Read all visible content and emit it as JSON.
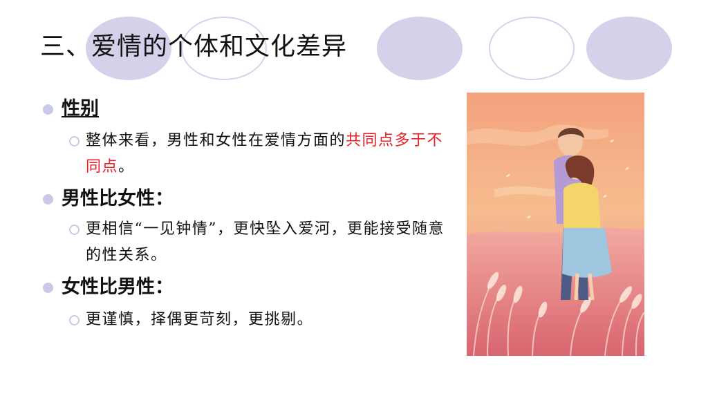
{
  "slide": {
    "title": "三、爱情的个体和文化差异",
    "colors": {
      "bullet": "#c9c9ea",
      "oval": "#d4d2ea",
      "highlight": "#e8202a"
    },
    "sections": [
      {
        "heading": "性别",
        "heading_underlined": true,
        "point_prefix": "整体来看，男性和女性在爱情方面的",
        "point_highlight": "共同点多于不同点",
        "point_suffix": "。"
      },
      {
        "heading": "男性比女性：",
        "point": "更相信“一见钟情”，更快坠入爱河，更能接受随意的性关系。"
      },
      {
        "heading": "女性比男性：",
        "point": "更谨慎，择偶更苛刻，更挑剔。"
      }
    ],
    "illustration": "couple-in-pink-grass-field-illustration"
  }
}
